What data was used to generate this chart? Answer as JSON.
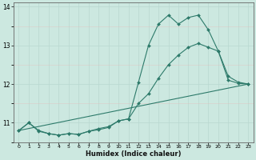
{
  "xlabel": "Humidex (Indice chaleur)",
  "xlim": [
    -0.5,
    23.5
  ],
  "ylim": [
    10.5,
    14.1
  ],
  "yticks": [
    11,
    12,
    13,
    14
  ],
  "xticks": [
    0,
    1,
    2,
    3,
    4,
    5,
    6,
    7,
    8,
    9,
    10,
    11,
    12,
    13,
    14,
    15,
    16,
    17,
    18,
    19,
    20,
    21,
    22,
    23
  ],
  "background_color": "#cce8e0",
  "line_color": "#2d7a6a",
  "grid_color_major": "#b8d8d0",
  "grid_color_minor": "#d0e8e0",
  "series": [
    {
      "x": [
        0,
        1,
        2,
        3,
        4,
        5,
        6,
        7,
        8,
        9,
        10,
        11,
        12,
        13,
        14,
        15,
        16,
        17,
        18,
        19,
        20,
        21,
        22,
        23
      ],
      "y": [
        10.8,
        11.0,
        10.8,
        10.72,
        10.68,
        10.72,
        10.7,
        10.78,
        10.85,
        10.9,
        11.05,
        11.1,
        12.05,
        13.0,
        13.55,
        13.78,
        13.55,
        13.72,
        13.78,
        13.4,
        12.85,
        12.2,
        12.05,
        12.0
      ],
      "marker": true
    },
    {
      "x": [
        0,
        1,
        2,
        3,
        4,
        5,
        6,
        7,
        8,
        9,
        10,
        11,
        12,
        13,
        14,
        15,
        16,
        17,
        18,
        19,
        20,
        21,
        22,
        23
      ],
      "y": [
        10.8,
        11.0,
        10.78,
        10.72,
        10.68,
        10.72,
        10.7,
        10.78,
        10.82,
        10.88,
        11.05,
        11.1,
        11.5,
        11.75,
        12.15,
        12.5,
        12.75,
        12.95,
        13.05,
        12.95,
        12.85,
        12.1,
        12.02,
        12.0
      ],
      "marker": true
    },
    {
      "x": [
        0,
        23
      ],
      "y": [
        10.8,
        12.0
      ],
      "marker": false
    }
  ]
}
